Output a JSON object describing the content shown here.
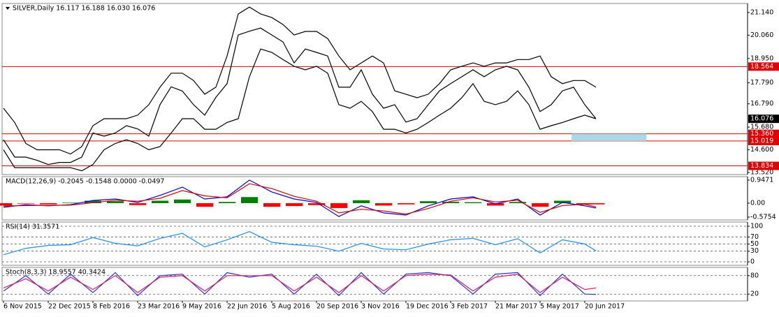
{
  "chart_data": [
    {
      "type": "line",
      "title": "SILVER,Daily  16.117 16.188 16.030 16.076",
      "xlim": [
        -1,
        532.5
      ],
      "ylim": [
        13.42,
        21.57
      ],
      "yticks": [
        {
          "value": 21.14,
          "label": "21.140"
        },
        {
          "value": 20.06,
          "label": "20.060"
        },
        {
          "value": 18.95,
          "label": "18.950"
        },
        {
          "value": 17.79,
          "label": "17.790"
        },
        {
          "value": 16.79,
          "label": "16.790"
        },
        {
          "value": 15.68,
          "label": "15.680"
        },
        {
          "value": 14.6,
          "label": "14.600"
        },
        {
          "value": 13.52,
          "label": "13.520"
        }
      ],
      "grid": false,
      "x": [
        0,
        8,
        16,
        24,
        32,
        40,
        48,
        56,
        64,
        72,
        80,
        88,
        96,
        104,
        112,
        120,
        128,
        136,
        144,
        152,
        160,
        168,
        176,
        184,
        192,
        200,
        208,
        216,
        224,
        232,
        240,
        248,
        256,
        264,
        272,
        280,
        288,
        296,
        304,
        312,
        320,
        328,
        336,
        344,
        352,
        360,
        368,
        376,
        384,
        392,
        400,
        408,
        416,
        424
      ],
      "series": [
        {
          "color": "#000000",
          "values": [
            15.08,
            14.25,
            14.25,
            14.1,
            13.9,
            14.0,
            14.0,
            14.25,
            15.4,
            15.25,
            15.4,
            15.75,
            15.6,
            15.25,
            16.75,
            17.6,
            17.4,
            16.75,
            16.25,
            17.1,
            17.75,
            20.07,
            20.25,
            20.4,
            20.07,
            19.74,
            18.74,
            19.4,
            19.24,
            19.07,
            17.58,
            17.58,
            18.41,
            17.25,
            16.58,
            16.75,
            15.92,
            16.08,
            16.75,
            17.41,
            17.75,
            18.08,
            18.41,
            18.08,
            18.41,
            18.58,
            18.41,
            17.58,
            16.42,
            16.75,
            17.41,
            17.58,
            16.75,
            16.08
          ]
        },
        {
          "color": "#000000",
          "values": [
            16.58,
            15.9,
            14.9,
            14.6,
            14.6,
            14.6,
            14.4,
            14.75,
            15.75,
            16.08,
            16.08,
            16.08,
            16.25,
            16.75,
            17.58,
            18.25,
            18.25,
            17.9,
            17.25,
            17.58,
            19.07,
            21.07,
            21.4,
            21.07,
            20.9,
            20.57,
            20.07,
            20.24,
            20.24,
            19.9,
            19.07,
            18.41,
            18.74,
            19.07,
            18.74,
            17.41,
            17.25,
            17.08,
            17.25,
            17.75,
            18.41,
            18.58,
            18.74,
            18.58,
            18.74,
            18.74,
            18.9,
            18.9,
            19.07,
            18.08,
            17.75,
            17.9,
            17.9,
            17.58
          ]
        },
        {
          "color": "#000000",
          "values": [
            14.6,
            13.75,
            13.75,
            13.75,
            13.75,
            13.75,
            13.75,
            13.6,
            13.9,
            14.6,
            14.9,
            15.08,
            14.9,
            14.6,
            14.75,
            15.4,
            16.08,
            16.08,
            15.58,
            15.58,
            15.9,
            16.08,
            18.08,
            19.4,
            19.24,
            18.9,
            18.58,
            18.41,
            18.58,
            18.25,
            16.75,
            16.58,
            16.91,
            16.42,
            15.58,
            15.58,
            15.4,
            15.58,
            15.9,
            16.25,
            16.58,
            17.08,
            17.75,
            16.91,
            16.75,
            16.91,
            17.41,
            16.75,
            15.58,
            15.75,
            15.9,
            16.08,
            16.25,
            16.08
          ]
        }
      ],
      "levels": [
        18.564,
        {
          "value": 15.36,
          "label": "15.360"
        },
        15.019,
        13.834
      ],
      "level_color": "#e00000",
      "zone_color": "#a8d8ea",
      "last_price": 16.076
    },
    {
      "type": "line",
      "title": "MACD(12,26,9) -0.2045 -0.1548 0.0000 -0.0497",
      "xlim": [
        -1,
        532.5
      ],
      "ylim": [
        -0.69,
        1.09
      ],
      "yticks": [
        0.9471,
        {
          "value": 0,
          "label": "0.00"
        },
        -0.5754
      ],
      "grid": false,
      "x": [
        0,
        16,
        32,
        48,
        64,
        80,
        96,
        112,
        128,
        144,
        160,
        176,
        192,
        208,
        224,
        240,
        256,
        272,
        288,
        304,
        320,
        336,
        352,
        368,
        384,
        400,
        416,
        424
      ],
      "series": [
        {
          "draw": "histogram",
          "color": "#008000",
          "negative_color": "#ff0000",
          "values": [
            -0.1,
            -0.02,
            -0.05,
            0.02,
            0.1,
            0.08,
            -0.08,
            0.1,
            0.15,
            -0.15,
            0.05,
            0.25,
            -0.15,
            -0.12,
            -0.08,
            -0.2,
            0.12,
            -0.1,
            -0.05,
            0.08,
            0.06,
            0.04,
            -0.1,
            0.05,
            -0.15,
            0.1,
            -0.05,
            -0.05
          ]
        },
        {
          "color": "#0000dd",
          "values": [
            -0.17,
            -0.06,
            -0.11,
            -0.06,
            0.11,
            0.17,
            0.03,
            0.32,
            0.66,
            0.17,
            0.26,
            0.95,
            0.46,
            0.17,
            0.03,
            -0.55,
            -0.11,
            -0.4,
            -0.49,
            -0.11,
            0.17,
            0.26,
            -0.03,
            0.17,
            -0.49,
            0.03,
            -0.11,
            -0.2
          ]
        },
        {
          "color": "#dd0000",
          "values": [
            -0.12,
            -0.1,
            -0.09,
            -0.08,
            0.02,
            0.12,
            0.08,
            0.2,
            0.52,
            0.3,
            0.22,
            0.8,
            0.6,
            0.28,
            0.08,
            -0.4,
            -0.25,
            -0.32,
            -0.45,
            -0.22,
            0.08,
            0.22,
            0.05,
            0.12,
            -0.38,
            -0.1,
            -0.05,
            -0.15
          ]
        }
      ]
    },
    {
      "type": "line",
      "title": "RSI(14) 31.3571",
      "xlim": [
        -1,
        532.5
      ],
      "ylim": [
        -9.8,
        111.8
      ],
      "yticks": [
        100,
        70,
        50,
        30,
        0
      ],
      "grid": "dashed",
      "x": [
        0,
        16,
        32,
        48,
        64,
        80,
        96,
        112,
        128,
        144,
        160,
        176,
        192,
        208,
        224,
        240,
        256,
        272,
        288,
        304,
        320,
        336,
        352,
        368,
        384,
        400,
        416,
        424
      ],
      "series": [
        {
          "color": "#1e90ff",
          "values": [
            20,
            38,
            46,
            48,
            68,
            52,
            45,
            66,
            80,
            42,
            62,
            85,
            55,
            48,
            44,
            30,
            52,
            36,
            34,
            50,
            62,
            66,
            48,
            65,
            25,
            62,
            50,
            31
          ]
        }
      ]
    },
    {
      "type": "line",
      "title": "Stoch(8,3,3) 18.9557 40.3424",
      "xlim": [
        -1,
        532.5
      ],
      "ylim": [
        -2.2,
        106.7
      ],
      "yticks": [
        80,
        20
      ],
      "grid": "dashed",
      "x": [
        0,
        16,
        32,
        48,
        64,
        80,
        96,
        112,
        128,
        144,
        160,
        176,
        192,
        208,
        224,
        240,
        256,
        272,
        288,
        304,
        320,
        336,
        352,
        368,
        384,
        400,
        416,
        424
      ],
      "series": [
        {
          "color": "#3030dd",
          "values": [
            30,
            80,
            20,
            85,
            25,
            90,
            15,
            80,
            85,
            20,
            90,
            75,
            85,
            20,
            85,
            15,
            90,
            20,
            85,
            90,
            80,
            20,
            85,
            90,
            15,
            85,
            20,
            19
          ]
        },
        {
          "color": "#dd2060",
          "values": [
            40,
            70,
            30,
            75,
            35,
            80,
            25,
            75,
            80,
            30,
            80,
            80,
            80,
            30,
            75,
            25,
            80,
            30,
            80,
            85,
            82,
            30,
            75,
            85,
            25,
            75,
            35,
            40
          ]
        }
      ],
      "xticks": [
        {
          "value": 0,
          "label": "6 Nov 2015"
        },
        {
          "value": 32,
          "label": "22 Dec 2015"
        },
        {
          "value": 64,
          "label": "8 Feb 2016"
        },
        {
          "value": 96,
          "label": "23 Mar 2016"
        },
        {
          "value": 128,
          "label": "9 May 2016"
        },
        {
          "value": 160,
          "label": "22 Jun 2016"
        },
        {
          "value": 192,
          "label": "5 Aug 2016"
        },
        {
          "value": 224,
          "label": "20 Sep 2016"
        },
        {
          "value": 256,
          "label": "3 Nov 2016"
        },
        {
          "value": 288,
          "label": "19 Dec 2016"
        },
        {
          "value": 320,
          "label": "3 Feb 2017"
        },
        {
          "value": 352,
          "label": "21 Mar 2017"
        },
        {
          "value": 384,
          "label": "5 May 2017"
        },
        {
          "value": 416,
          "label": "20 Jun 2017"
        }
      ]
    }
  ]
}
